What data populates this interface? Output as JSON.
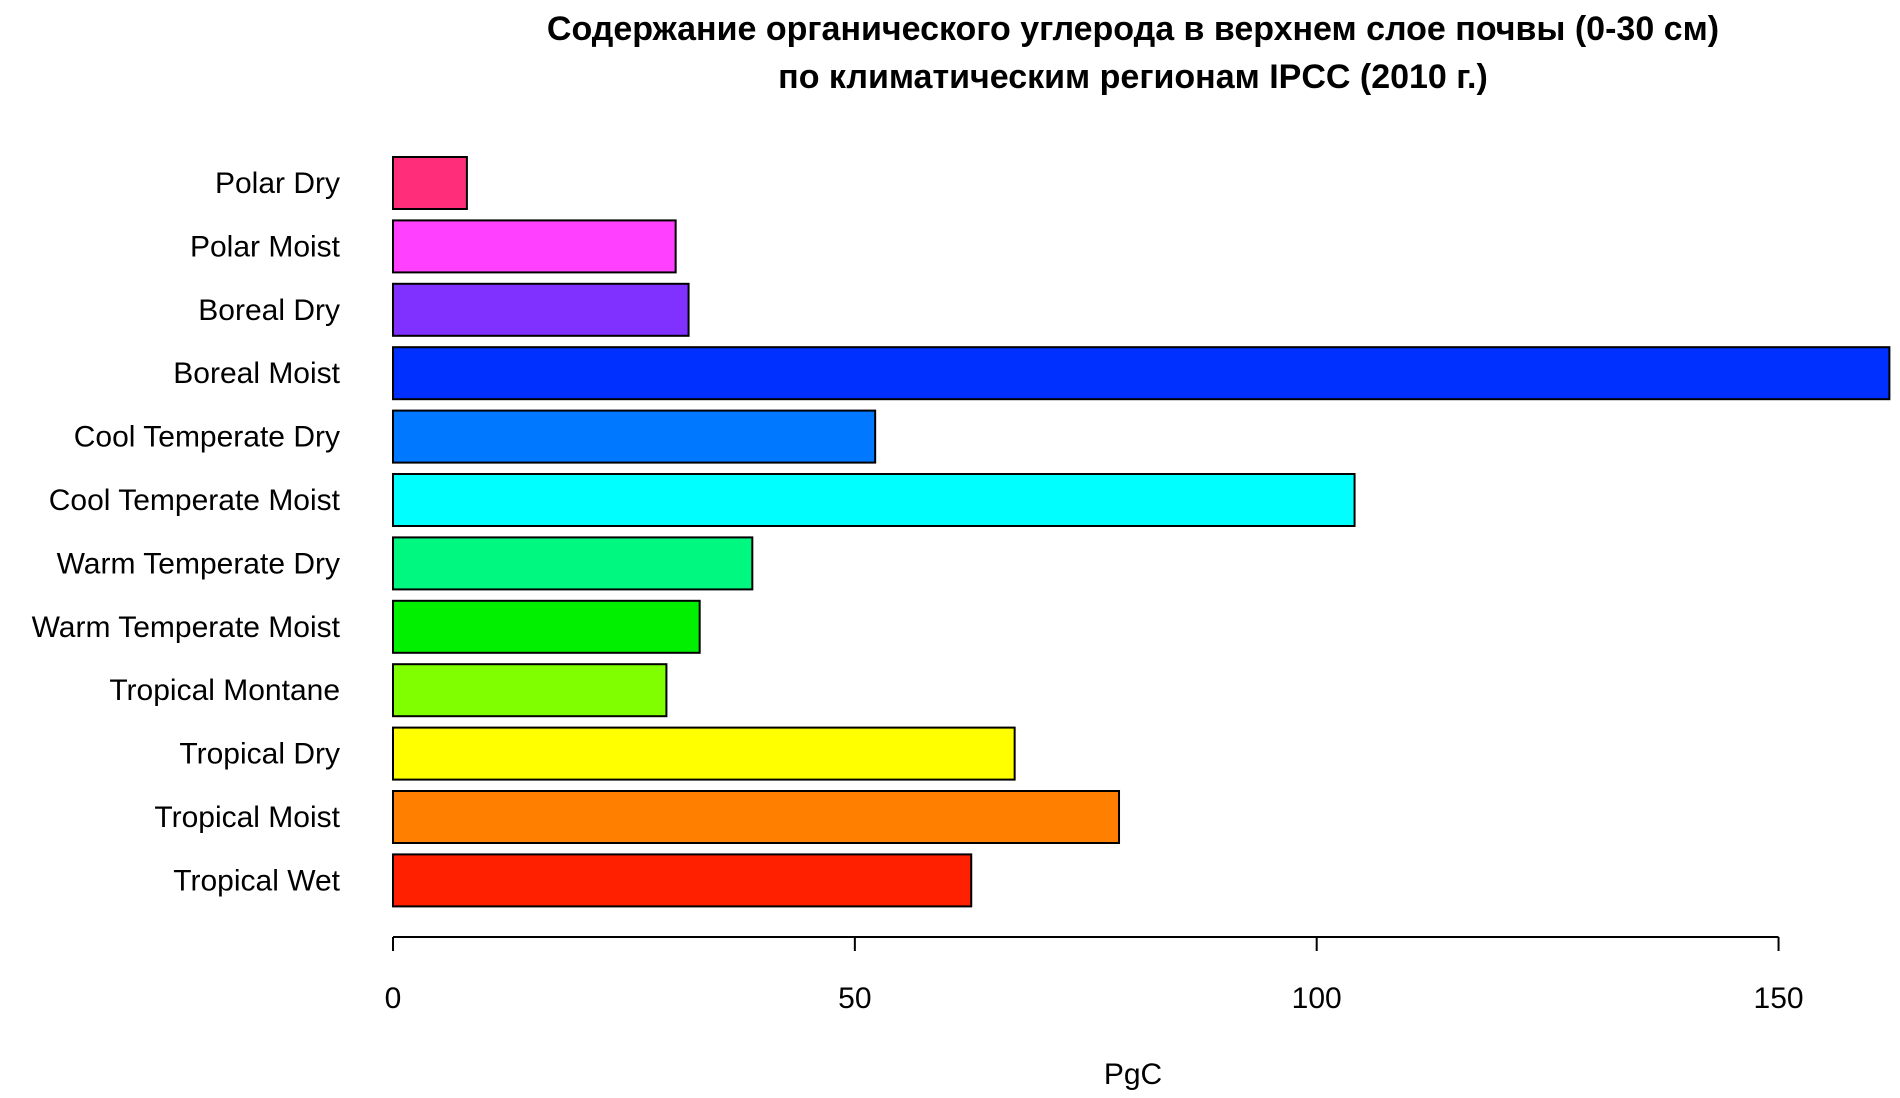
{
  "chart_data": {
    "type": "bar",
    "orientation": "horizontal",
    "title": "Содержание органического углерода в верхнем слое почвы (0-30 см)\nпо климатическим регионам IPCC (2010 г.)",
    "title_lines": [
      "Содержание органического углерода в верхнем слое почвы (0-30 см)",
      "по климатическим регионам IPCC (2010 г.)"
    ],
    "xlabel": "PgC",
    "ylabel": "",
    "xlim": [
      0,
      162
    ],
    "xticks": [
      0,
      50,
      100,
      150
    ],
    "xtick_labels": [
      "0",
      "50",
      "100",
      "150"
    ],
    "grid": false,
    "legend": "none",
    "categories": [
      "Polar Dry",
      "Polar Moist",
      "Boreal Dry",
      "Boreal Moist",
      "Cool Temperate Dry",
      "Cool Temperate Moist",
      "Warm Temperate Dry",
      "Warm Temperate Moist",
      "Tropical Montane",
      "Tropical Dry",
      "Tropical Moist",
      "Tropical Wet"
    ],
    "values": [
      8,
      30.6,
      32,
      162,
      52.2,
      104.1,
      38.9,
      33.2,
      29.6,
      67.3,
      78.6,
      62.6
    ],
    "colors": [
      "#FF2D7A",
      "#FF40FF",
      "#8030FF",
      "#0030FF",
      "#0078FF",
      "#00FFFF",
      "#00F880",
      "#00F000",
      "#80FF00",
      "#FFFF00",
      "#FF8000",
      "#FF2000"
    ]
  }
}
